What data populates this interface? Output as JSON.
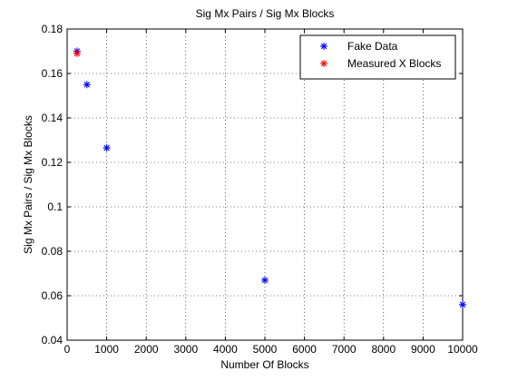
{
  "chart_data": {
    "type": "scatter",
    "title": "Sig Mx Pairs / Sig Mx Blocks",
    "xlabel": "Number Of Blocks",
    "ylabel": "Sig Mx Pairs / Sig Mx Blocks",
    "xlim": [
      0,
      10000
    ],
    "ylim": [
      0.04,
      0.18
    ],
    "xticks": [
      0,
      1000,
      2000,
      3000,
      4000,
      5000,
      6000,
      7000,
      8000,
      9000,
      10000
    ],
    "yticks": [
      0.04,
      0.06,
      0.08,
      0.1,
      0.12,
      0.14,
      0.16,
      0.18
    ],
    "xtick_labels": [
      "0",
      "1000",
      "2000",
      "3000",
      "4000",
      "5000",
      "6000",
      "7000",
      "8000",
      "9000",
      "10000"
    ],
    "ytick_labels": [
      "0.04",
      "0.06",
      "0.08",
      "0.1",
      "0.12",
      "0.14",
      "0.16",
      "0.18"
    ],
    "grid": true,
    "legend_position": "top-right",
    "marker": "*",
    "series": [
      {
        "name": "Fake Data",
        "color": "#0000ff",
        "points": [
          {
            "x": 250,
            "y": 0.17
          },
          {
            "x": 500,
            "y": 0.155
          },
          {
            "x": 1000,
            "y": 0.1265
          },
          {
            "x": 5000,
            "y": 0.067
          },
          {
            "x": 10000,
            "y": 0.056
          }
        ]
      },
      {
        "name": "Measured X Blocks",
        "color": "#ff0000",
        "points": [
          {
            "x": 250,
            "y": 0.169
          }
        ]
      }
    ]
  }
}
